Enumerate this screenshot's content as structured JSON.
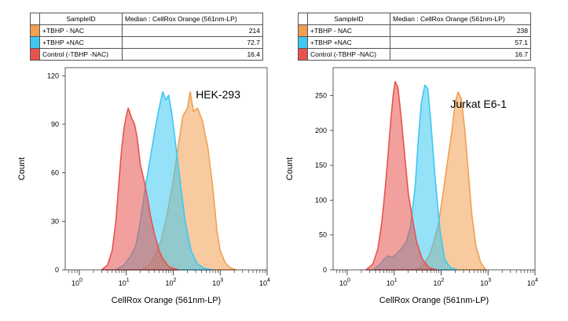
{
  "colors": {
    "tbhp_minus_nac": "#f0a050",
    "tbhp_plus_nac": "#3ec8f2",
    "control": "#e8524d"
  },
  "chart_data": [
    {
      "type": "area",
      "title": "HEK-293",
      "xlabel": "CellRox Orange (561nm-LP)",
      "ylabel": "Count",
      "xscale": "log",
      "xlim": [
        0.5,
        10000
      ],
      "ylim": [
        0,
        125
      ],
      "yticks": [
        0,
        30,
        60,
        90,
        120
      ],
      "ytick_labels": [
        "0",
        "30",
        "60",
        "90",
        "120"
      ],
      "xtick_bases": [
        "10",
        "10",
        "10",
        "10",
        "10"
      ],
      "xtick_exps": [
        "0",
        "1",
        "2",
        "3",
        "4"
      ],
      "table": {
        "headers": [
          "SampleID",
          "Median : CellRox Orange (561nm-LP)"
        ],
        "rows": [
          {
            "id": "+TBHP - NAC",
            "median": "214",
            "color": "#f0a050"
          },
          {
            "id": "+TBHP +NAC",
            "median": "72.7",
            "color": "#3ec8f2"
          },
          {
            "id": "Control (-TBHP -NAC)",
            "median": "16.4",
            "color": "#e8524d"
          }
        ]
      },
      "series": [
        {
          "name": "+TBHP - NAC",
          "color": "#f0a050",
          "x": [
            22,
            30,
            40,
            55,
            75,
            100,
            130,
            160,
            200,
            230,
            270,
            330,
            420,
            550,
            700,
            850,
            1000,
            1300,
            1700,
            2200
          ],
          "y": [
            0,
            3,
            8,
            18,
            35,
            55,
            78,
            95,
            100,
            110,
            98,
            100,
            92,
            75,
            50,
            25,
            12,
            4,
            1,
            0
          ]
        },
        {
          "name": "+TBHP +NAC",
          "color": "#3ec8f2",
          "x": [
            6,
            9,
            12,
            16,
            20,
            25,
            32,
            40,
            50,
            60,
            70,
            80,
            95,
            110,
            140,
            180,
            240,
            320,
            450,
            700
          ],
          "y": [
            0,
            3,
            8,
            15,
            30,
            50,
            68,
            85,
            100,
            110,
            105,
            108,
            95,
            80,
            55,
            30,
            12,
            4,
            1,
            0
          ]
        },
        {
          "name": "Control (-TBHP -NAC)",
          "color": "#e8524d",
          "x": [
            3,
            4,
            5,
            6,
            7,
            8,
            9,
            10,
            11,
            13,
            15,
            17,
            20,
            24,
            28,
            33,
            40,
            50,
            60,
            80,
            100,
            130
          ],
          "y": [
            0,
            3,
            12,
            30,
            55,
            75,
            88,
            95,
            100,
            94,
            90,
            82,
            65,
            55,
            45,
            33,
            22,
            12,
            7,
            2,
            1,
            0
          ]
        }
      ]
    },
    {
      "type": "area",
      "title": "Jurkat E6-1",
      "xlabel": "CellRox Orange (561nm-LP)",
      "ylabel": "Count",
      "xscale": "log",
      "xlim": [
        0.5,
        10000
      ],
      "ylim": [
        0,
        290
      ],
      "yticks": [
        0,
        50,
        100,
        150,
        200,
        250
      ],
      "ytick_labels": [
        "0",
        "50",
        "100",
        "150",
        "200",
        "250"
      ],
      "xtick_bases": [
        "10",
        "10",
        "10",
        "10",
        "10"
      ],
      "xtick_exps": [
        "0",
        "1",
        "2",
        "3",
        "4"
      ],
      "table": {
        "headers": [
          "SampleID",
          "Median : CellRox Orange (561nm-LP)"
        ],
        "rows": [
          {
            "id": "+TBHP - NAC",
            "median": "238",
            "color": "#f0a050"
          },
          {
            "id": "+TBHP +NAC",
            "median": "57.1",
            "color": "#3ec8f2"
          },
          {
            "id": "Control (-TBHP -NAC)",
            "median": "16.7",
            "color": "#e8524d"
          }
        ]
      },
      "series": [
        {
          "name": "+TBHP - NAC",
          "color": "#f0a050",
          "x": [
            28,
            40,
            55,
            70,
            90,
            110,
            140,
            170,
            200,
            230,
            270,
            320,
            380,
            450,
            550,
            700,
            900
          ],
          "y": [
            0,
            5,
            20,
            40,
            70,
            110,
            160,
            200,
            240,
            255,
            245,
            200,
            140,
            80,
            35,
            10,
            0
          ]
        },
        {
          "name": "+TBHP +NAC",
          "color": "#3ec8f2",
          "x": [
            3.5,
            5,
            6,
            7.5,
            9,
            11,
            14,
            18,
            22,
            28,
            33,
            38,
            45,
            52,
            60,
            75,
            95,
            120,
            160,
            220
          ],
          "y": [
            0,
            8,
            15,
            20,
            18,
            22,
            30,
            40,
            60,
            120,
            190,
            240,
            265,
            260,
            215,
            130,
            55,
            15,
            3,
            0
          ]
        },
        {
          "name": "Control (-TBHP -NAC)",
          "color": "#e8524d",
          "x": [
            2.5,
            3.5,
            4.5,
            5.5,
            6.5,
            7.5,
            8.5,
            9.5,
            10.5,
            12,
            14,
            17,
            20,
            25,
            30,
            40,
            55,
            80
          ],
          "y": [
            0,
            8,
            30,
            70,
            120,
            170,
            215,
            250,
            270,
            262,
            220,
            160,
            110,
            70,
            40,
            15,
            3,
            0
          ]
        }
      ]
    }
  ]
}
